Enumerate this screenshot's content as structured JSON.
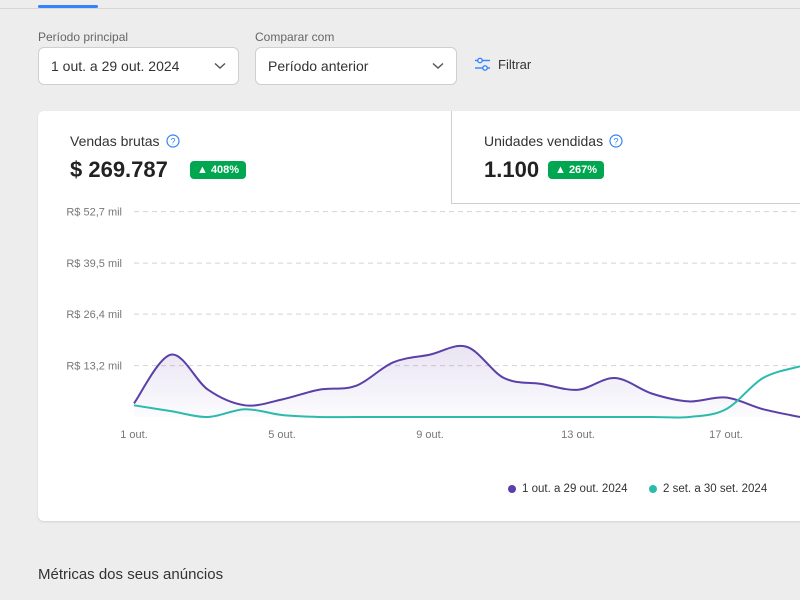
{
  "filters": {
    "main_period_label": "Período principal",
    "main_period_value": "1 out. a 29 out. 2024",
    "compare_label": "Comparar com",
    "compare_value": "Período anterior",
    "filter_button": "Filtrar"
  },
  "kpis": [
    {
      "title": "Vendas brutas",
      "value": "$ 269.787",
      "badge": "▲ 408%"
    },
    {
      "title": "Unidades vendidas",
      "value": "1.100",
      "badge": "▲ 267%"
    }
  ],
  "colors": {
    "accent": "#3483fa",
    "positive": "#00a650",
    "series_current": "#5b3fa8",
    "series_previous": "#2bbbad"
  },
  "chart_data": {
    "type": "area",
    "ylim": [
      0,
      58
    ],
    "ytick_values": [
      13.2,
      26.4,
      39.5,
      52.7
    ],
    "ytick_labels": [
      "R$ 13,2 mil",
      "R$ 26,4 mil",
      "R$ 39,5 mil",
      "R$ 52,7 mil"
    ],
    "x": [
      1,
      2,
      3,
      4,
      5,
      6,
      7,
      8,
      9,
      10,
      11,
      12,
      13,
      14,
      15,
      16,
      17,
      18,
      19
    ],
    "xtick_values": [
      1,
      5,
      9,
      13,
      17
    ],
    "xtick_labels": [
      "1 out.",
      "5 out.",
      "9 out.",
      "13 out.",
      "17 out."
    ],
    "grid": true,
    "legend_position": "bottom-right",
    "series": [
      {
        "name": "1 out. a 29 out. 2024",
        "values": [
          3.5,
          16,
          7,
          3,
          4.5,
          7,
          8,
          14,
          16,
          18,
          10,
          8.5,
          7,
          10,
          6,
          4,
          5,
          2,
          0
        ]
      },
      {
        "name": "2 set. a 30 set. 2024",
        "values": [
          3,
          1.5,
          0,
          2,
          0.5,
          0,
          0,
          0,
          0,
          0,
          0,
          0,
          0,
          0,
          0,
          0,
          2,
          10,
          13
        ]
      }
    ]
  },
  "section_title": "Métricas dos seus anúncios"
}
